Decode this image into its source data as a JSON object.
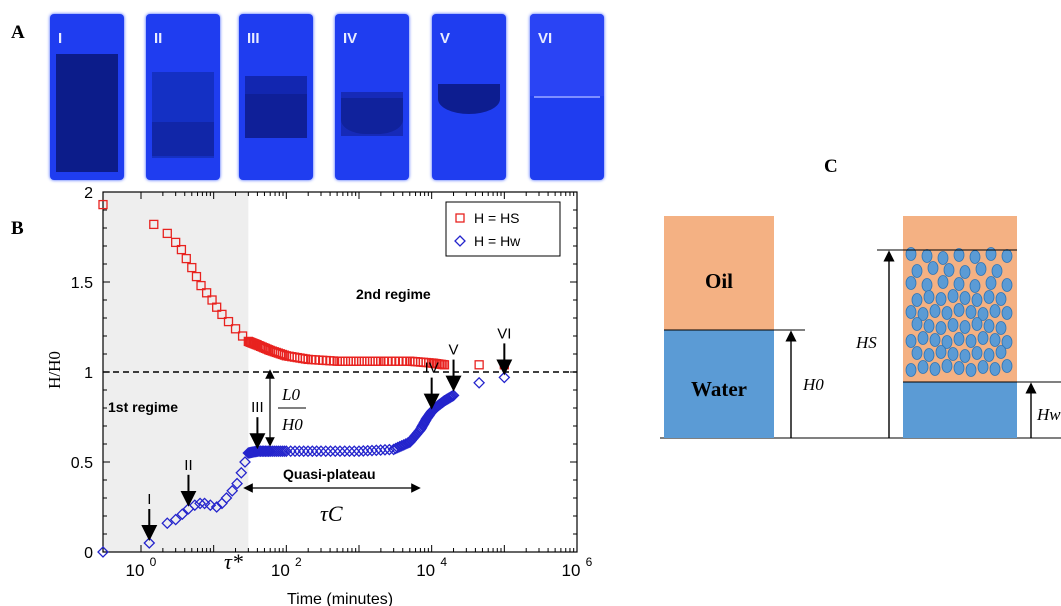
{
  "panels": {
    "a": "A",
    "b": "B",
    "c": "C"
  },
  "vials": [
    {
      "label": "I"
    },
    {
      "label": "II"
    },
    {
      "label": "III"
    },
    {
      "label": "IV"
    },
    {
      "label": "V"
    },
    {
      "label": "VI"
    }
  ],
  "chart_data": {
    "type": "scatter",
    "xlabel": "Time (minutes)",
    "ylabel": "H/H0",
    "xscale": "log",
    "xlim": [
      0.3,
      1000000
    ],
    "ylim": [
      0,
      2
    ],
    "xticks": [
      1,
      100,
      10000,
      1000000
    ],
    "yticks": [
      0,
      0.5,
      1,
      1.5,
      2
    ],
    "reference_line": 1,
    "legend_placement": "top-right",
    "series": [
      {
        "name": "H = HS",
        "color": "#e8221f",
        "marker": "square",
        "x": [
          0.3,
          1.5,
          2.3,
          3,
          3.6,
          4.2,
          5,
          5.8,
          6.7,
          8,
          9.5,
          11,
          13,
          16,
          20,
          25,
          30,
          40,
          60,
          100,
          200,
          500,
          1000,
          2000,
          5000,
          10000,
          15000,
          45000,
          100000
        ],
        "y": [
          1.93,
          1.82,
          1.77,
          1.72,
          1.68,
          1.63,
          1.58,
          1.53,
          1.48,
          1.44,
          1.4,
          1.36,
          1.32,
          1.28,
          1.24,
          1.2,
          1.17,
          1.15,
          1.12,
          1.09,
          1.07,
          1.06,
          1.06,
          1.06,
          1.06,
          1.05,
          1.04,
          1.04,
          1.04
        ]
      },
      {
        "name": "H = Hw",
        "color": "#2424cc",
        "marker": "diamond",
        "x": [
          0.3,
          1.3,
          2.3,
          3,
          3.7,
          4.5,
          5.5,
          6.5,
          7.5,
          9,
          11,
          13,
          15,
          18,
          21,
          24,
          27,
          30,
          40,
          60,
          100,
          300,
          1000,
          3000,
          5000,
          7000,
          8500,
          10000,
          12000,
          15000,
          20000,
          45000,
          100000
        ],
        "y": [
          0.0,
          0.05,
          0.16,
          0.18,
          0.21,
          0.24,
          0.26,
          0.27,
          0.27,
          0.26,
          0.25,
          0.27,
          0.3,
          0.34,
          0.38,
          0.44,
          0.5,
          0.55,
          0.56,
          0.56,
          0.56,
          0.56,
          0.56,
          0.57,
          0.61,
          0.68,
          0.74,
          0.78,
          0.81,
          0.84,
          0.87,
          0.94,
          0.97
        ]
      }
    ],
    "shaded_region_until": 30,
    "annotations": {
      "regime1": "1st regime",
      "regime2": "2nd regime",
      "quasi": "Quasi-plateau",
      "tauC": "τC",
      "taustar": "τ*",
      "l0_num": "L0",
      "l0_den": "H0",
      "stage_labels": [
        {
          "label": "I",
          "x": 1.3,
          "y": 0.05
        },
        {
          "label": "II",
          "x": 4.5,
          "y": 0.24
        },
        {
          "label": "III",
          "x": 40,
          "y": 0.56
        },
        {
          "label": "IV",
          "x": 10000,
          "y": 0.78
        },
        {
          "label": "V",
          "x": 20000,
          "y": 0.88
        },
        {
          "label": "VI",
          "x": 100000,
          "y": 0.97
        }
      ]
    }
  },
  "diagram": {
    "oil": "Oil",
    "water": "Water",
    "h0": "H0",
    "hs": "HS",
    "hw": "Hw"
  }
}
